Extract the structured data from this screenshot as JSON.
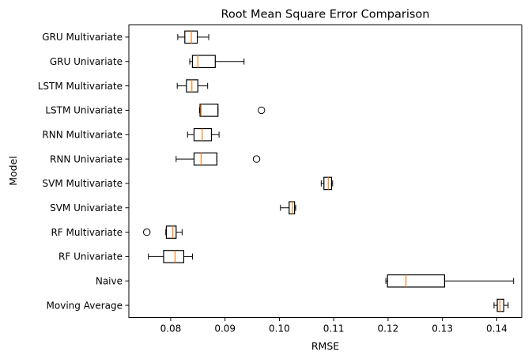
{
  "chart_data": {
    "type": "boxplot",
    "orientation": "horizontal",
    "title": "Root Mean Square Error Comparison",
    "xlabel": "RMSE",
    "ylabel": "Model",
    "xlim": [
      0.0723,
      0.1446
    ],
    "xticks": [
      0.08,
      0.09,
      0.1,
      0.11,
      0.12,
      0.13,
      0.14
    ],
    "xtick_labels": [
      "0.08",
      "0.09",
      "0.10",
      "0.11",
      "0.12",
      "0.13",
      "0.14"
    ],
    "grid": false,
    "box_color": "#000000",
    "median_color": "#ff7f0e",
    "categories": [
      {
        "label": "GRU Multivariate",
        "whisker_low": 0.0813,
        "q1": 0.0826,
        "median": 0.0838,
        "q3": 0.0849,
        "whisker_high": 0.087,
        "outliers": []
      },
      {
        "label": "GRU Univariate",
        "whisker_low": 0.0835,
        "q1": 0.084,
        "median": 0.085,
        "q3": 0.0882,
        "whisker_high": 0.0935,
        "outliers": []
      },
      {
        "label": "LSTM Multivariate",
        "whisker_low": 0.0812,
        "q1": 0.0829,
        "median": 0.0839,
        "q3": 0.085,
        "whisker_high": 0.0868,
        "outliers": []
      },
      {
        "label": "LSTM Univariate",
        "whisker_low": 0.0853,
        "q1": 0.0854,
        "median": 0.0856,
        "q3": 0.0887,
        "whisker_high": 0.0887,
        "outliers": [
          0.0967
        ]
      },
      {
        "label": "RNN Multivariate",
        "whisker_low": 0.0831,
        "q1": 0.0843,
        "median": 0.0858,
        "q3": 0.0875,
        "whisker_high": 0.0889,
        "outliers": []
      },
      {
        "label": "RNN Univariate",
        "whisker_low": 0.081,
        "q1": 0.0843,
        "median": 0.0856,
        "q3": 0.0885,
        "whisker_high": 0.0885,
        "outliers": [
          0.0958
        ]
      },
      {
        "label": "SVM Multivariate",
        "whisker_low": 0.1077,
        "q1": 0.1082,
        "median": 0.109,
        "q3": 0.1096,
        "whisker_high": 0.1098,
        "outliers": []
      },
      {
        "label": "SVM Univariate",
        "whisker_low": 0.1002,
        "q1": 0.1018,
        "median": 0.1024,
        "q3": 0.1028,
        "whisker_high": 0.103,
        "outliers": []
      },
      {
        "label": "RF Multivariate",
        "whisker_low": 0.0791,
        "q1": 0.0792,
        "median": 0.0804,
        "q3": 0.081,
        "whisker_high": 0.0821,
        "outliers": [
          0.0756
        ]
      },
      {
        "label": "RF Univariate",
        "whisker_low": 0.0759,
        "q1": 0.0787,
        "median": 0.0808,
        "q3": 0.0824,
        "whisker_high": 0.084,
        "outliers": []
      },
      {
        "label": "Naive",
        "whisker_low": 0.1196,
        "q1": 0.1199,
        "median": 0.1233,
        "q3": 0.1304,
        "whisker_high": 0.1431,
        "outliers": []
      },
      {
        "label": "Moving Average",
        "whisker_low": 0.1395,
        "q1": 0.1401,
        "median": 0.1406,
        "q3": 0.1413,
        "whisker_high": 0.1421,
        "outliers": []
      }
    ]
  }
}
